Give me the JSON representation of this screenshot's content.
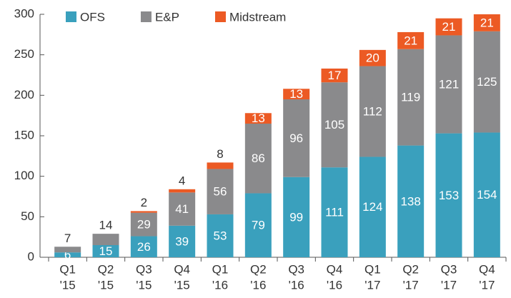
{
  "chart_data": {
    "type": "stacked_bar",
    "categories": [
      [
        "Q1",
        "'15"
      ],
      [
        "Q2",
        "'15"
      ],
      [
        "Q3",
        "'15"
      ],
      [
        "Q4",
        "'15"
      ],
      [
        "Q1",
        "'16"
      ],
      [
        "Q2",
        "'16"
      ],
      [
        "Q3",
        "'16"
      ],
      [
        "Q4",
        "'16"
      ],
      [
        "Q1",
        "'17"
      ],
      [
        "Q2",
        "'17"
      ],
      [
        "Q3",
        "'17"
      ],
      [
        "Q4",
        "'17"
      ]
    ],
    "series": [
      {
        "name": "OFS",
        "color": "#3aa0bd",
        "values": [
          6,
          15,
          26,
          39,
          53,
          79,
          99,
          111,
          124,
          138,
          153,
          154
        ]
      },
      {
        "name": "E&P",
        "color": "#8a8a8c",
        "values": [
          7,
          14,
          29,
          41,
          56,
          86,
          96,
          105,
          112,
          119,
          121,
          125
        ]
      },
      {
        "name": "Midstream",
        "color": "#ec5a24",
        "values": [
          null,
          null,
          2,
          4,
          8,
          13,
          13,
          17,
          20,
          21,
          21,
          21
        ]
      }
    ],
    "ylim": [
      0,
      300
    ],
    "yticks": [
      0,
      50,
      100,
      150,
      200,
      250,
      300
    ],
    "legend": "top"
  }
}
